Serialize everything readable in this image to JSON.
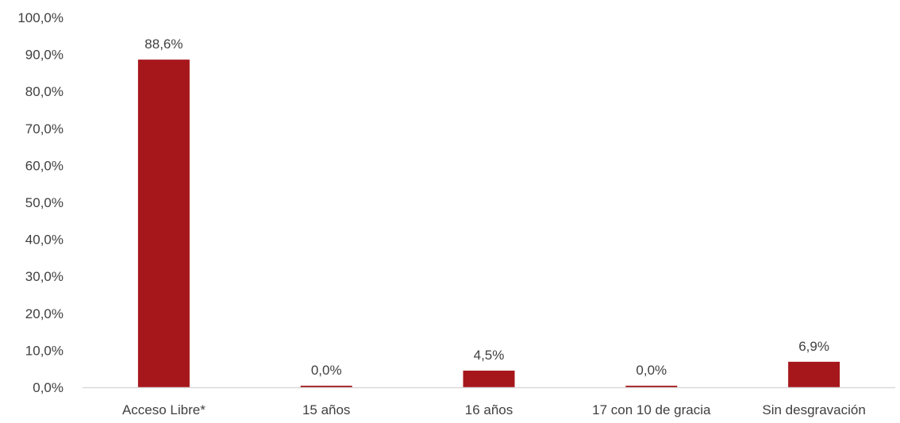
{
  "chart_data": {
    "type": "bar",
    "categories": [
      "Acceso Libre*",
      "15 años",
      "16 años",
      "17 con 10 de gracia",
      "Sin desgravación"
    ],
    "values": [
      88.6,
      0.0,
      4.5,
      0.0,
      6.9
    ],
    "data_labels": [
      "88,6%",
      "0,0%",
      "4,5%",
      "0,0%",
      "6,9%"
    ],
    "y_ticks": [
      0,
      10,
      20,
      30,
      40,
      50,
      60,
      70,
      80,
      90,
      100
    ],
    "y_tick_labels": [
      "0,0%",
      "10,0%",
      "20,0%",
      "30,0%",
      "40,0%",
      "50,0%",
      "60,0%",
      "70,0%",
      "80,0%",
      "90,0%",
      "100,0%"
    ],
    "ylim": [
      0,
      100
    ],
    "grid": false,
    "legend": "none",
    "title": "",
    "xlabel": "",
    "ylabel": "",
    "colors": {
      "bar": "#A6171C",
      "axis": "#D9D9D9",
      "text": "#404040"
    }
  }
}
